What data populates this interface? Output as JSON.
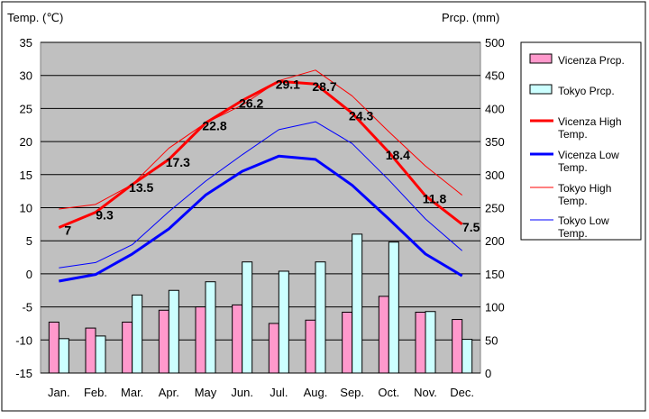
{
  "chart_data": {
    "type": "bar+line",
    "title": "",
    "y_left_label": "Temp. (℃)",
    "y_right_label": "Prcp. (mm)",
    "y_left_range": [
      -15,
      35
    ],
    "y_left_ticks": [
      35,
      30,
      25,
      20,
      15,
      10,
      5,
      0,
      -5,
      -10,
      -15
    ],
    "y_right_range": [
      0,
      500
    ],
    "y_right_ticks": [
      500,
      450,
      400,
      350,
      300,
      250,
      200,
      150,
      100,
      50,
      0
    ],
    "categories": [
      "Jan.",
      "Feb.",
      "Mar.",
      "Apr.",
      "May",
      "Jun.",
      "Jul.",
      "Aug.",
      "Sep.",
      "Oct.",
      "Nov.",
      "Dec."
    ],
    "bars": [
      {
        "name": "Vicenza Prcp.",
        "color": "#ff99cc",
        "values": [
          77,
          68,
          77,
          95,
          100,
          103,
          75,
          80,
          92,
          116,
          92,
          81
        ]
      },
      {
        "name": "Tokyo Prcp.",
        "color": "#ccffff",
        "values": [
          52,
          56,
          118,
          125,
          138,
          168,
          154,
          168,
          210,
          198,
          93,
          51
        ]
      }
    ],
    "lines": [
      {
        "name": "Vicenza High Temp.",
        "color": "#ff0000",
        "width": 3,
        "values": [
          7,
          9.3,
          13.5,
          17.3,
          22.8,
          26.2,
          29.1,
          28.7,
          24.3,
          18.4,
          11.8,
          7.5
        ]
      },
      {
        "name": "Vicenza Low Temp.",
        "color": "#0000ff",
        "width": 3,
        "values": [
          -1.1,
          -0.1,
          3,
          6.8,
          11.9,
          15.5,
          17.8,
          17.3,
          13.4,
          8.3,
          3,
          -0.3
        ]
      },
      {
        "name": "Tokyo High Temp.",
        "color": "#ff0000",
        "width": 1,
        "values": [
          9.8,
          10.5,
          13.5,
          19,
          22.8,
          25.5,
          29.2,
          30.8,
          26.9,
          21.5,
          16.3,
          11.9
        ]
      },
      {
        "name": "Tokyo Low Temp.",
        "color": "#0000ff",
        "width": 1,
        "values": [
          0.9,
          1.7,
          4.4,
          9.4,
          14,
          18,
          21.8,
          23,
          19.7,
          14.2,
          8.3,
          3.5
        ]
      }
    ],
    "data_labels": [
      "7",
      "9.3",
      "13.5",
      "17.3",
      "22.8",
      "26.2",
      "29.1",
      "28.7",
      "24.3",
      "18.4",
      "11.8",
      "7.5"
    ],
    "legend": [
      {
        "label": "Vicenza Prcp.",
        "kind": "bar",
        "color": "#ff99cc"
      },
      {
        "label": "Tokyo Prcp.",
        "kind": "bar",
        "color": "#ccffff"
      },
      {
        "label": "Vicenza High Temp.",
        "kind": "line",
        "color": "#ff0000",
        "width": 3
      },
      {
        "label": "Vicenza Low Temp.",
        "kind": "line",
        "color": "#0000ff",
        "width": 3
      },
      {
        "label": "Tokyo High Temp.",
        "kind": "line",
        "color": "#ff0000",
        "width": 1
      },
      {
        "label": "Tokyo Low Temp.",
        "kind": "line",
        "color": "#0000ff",
        "width": 1
      }
    ],
    "legend_position": "right",
    "plot_background": "#c0c0c0",
    "grid": true
  }
}
